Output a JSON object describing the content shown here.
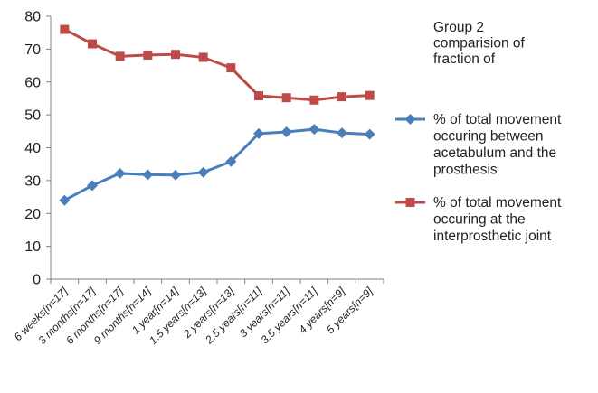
{
  "chart_data": {
    "type": "line",
    "title": "Group 2 comparision of fraction of",
    "title_lines": [
      "Group 2",
      "comparision of",
      "fraction of"
    ],
    "xlabel": "",
    "ylabel": "",
    "ylim": [
      0,
      80
    ],
    "yticks": [
      0,
      10,
      20,
      30,
      40,
      50,
      60,
      70,
      80
    ],
    "grid": false,
    "legend_position": "right",
    "categories": [
      "6 weeks[n=17]",
      "3 months[n=17]",
      "6 months[n=17]",
      "9 months[n=14]",
      "1 year[n=14]",
      "1.5 years[n=13]",
      "2 years[n=13]",
      "2.5 years[n=11]",
      "3 years[n=11]",
      "3.5 years[n=11]",
      "4 years[n=9]",
      "5 years[n=9]"
    ],
    "series": [
      {
        "name": "% of total movement occuring between acetabulum and the prosthesis",
        "name_lines": [
          "% of total movement",
          "occuring between",
          "acetabulum and the",
          "prosthesis"
        ],
        "color": "#4a7ebb",
        "marker": "diamond",
        "values": [
          24,
          28.5,
          32.2,
          31.8,
          31.7,
          32.5,
          35.8,
          44.3,
          44.8,
          45.6,
          44.5,
          44.1
        ]
      },
      {
        "name": "% of total movement occuring at the interprosthetic joint",
        "name_lines": [
          "% of total movement",
          "occuring at the",
          "interprosthetic joint"
        ],
        "color": "#be4b48",
        "marker": "square",
        "values": [
          76,
          71.6,
          67.8,
          68.2,
          68.4,
          67.5,
          64.3,
          55.8,
          55.2,
          54.5,
          55.5,
          55.9
        ]
      }
    ]
  }
}
